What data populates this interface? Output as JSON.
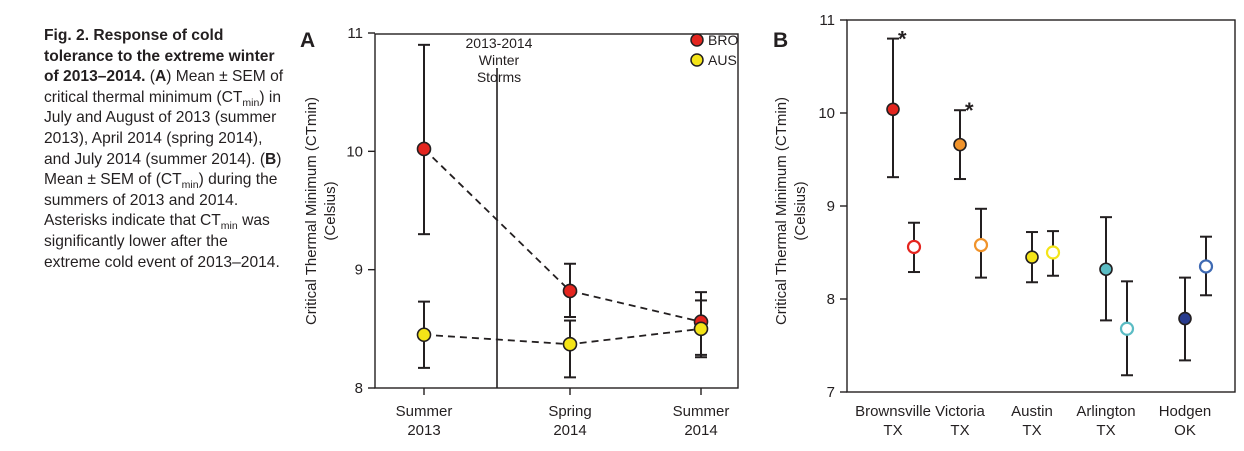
{
  "caption": {
    "title": "Fig. 2. Response of cold tolerance to the extreme winter of 2013–2014.",
    "label_a": "A",
    "body_1": "Mean ± SEM of critical thermal minimum (CT",
    "sub_1": "min",
    "body_2": ") in July and August of 2013 (summer 2013), April 2014 (spring 2014), and July 2014 (summer 2014).",
    "label_b": "B",
    "body_3": "Mean ± SEM of (CT",
    "sub_2": "min",
    "body_4": ") during the summers of 2013 and 2014. Asterisks indicate that CT",
    "sub_3": "min",
    "body_5": "was significantly lower after the extreme cold event of 2013–2014."
  },
  "chart_data": [
    {
      "panel": "A",
      "type": "scatter",
      "ylabel_line1": "Critical Thermal Minimum (CTmin)",
      "ylabel_line2": "(Celsius)",
      "ylim": [
        8,
        11
      ],
      "yticks": [
        "8",
        "9",
        "10",
        "11"
      ],
      "categories": [
        {
          "line1": "Summer",
          "line2": "2013"
        },
        {
          "line1": "Spring",
          "line2": "2014"
        },
        {
          "line1": "Summer",
          "line2": "2014"
        }
      ],
      "annotation": {
        "line1": "2013-2014",
        "line2": "Winter",
        "line3": "Storms"
      },
      "legend": [
        {
          "label": "BRO",
          "color": "#e4251f"
        },
        {
          "label": "AUS",
          "color": "#f4e418"
        }
      ],
      "series": [
        {
          "name": "BRO",
          "color": "#e4251f",
          "values": [
            10.02,
            8.82,
            8.56
          ],
          "sem_low": [
            9.3,
            8.6,
            8.26
          ],
          "sem_high": [
            10.9,
            9.05,
            8.81
          ]
        },
        {
          "name": "AUS",
          "color": "#f4e418",
          "values": [
            8.45,
            8.37,
            8.5
          ],
          "sem_low": [
            8.17,
            8.09,
            8.28
          ],
          "sem_high": [
            8.73,
            8.57,
            8.74
          ]
        }
      ]
    },
    {
      "panel": "B",
      "type": "scatter",
      "ylabel_line1": "Critical Thermal Minimum (CTmin)",
      "ylabel_line2": "(Celsius)",
      "ylim": [
        7,
        11
      ],
      "yticks": [
        "7",
        "8",
        "9",
        "10",
        "11"
      ],
      "categories": [
        {
          "line1": "Brownsville",
          "line2": "TX"
        },
        {
          "line1": "Victoria",
          "line2": "TX"
        },
        {
          "line1": "Austin",
          "line2": "TX"
        },
        {
          "line1": "Arlington",
          "line2": "TX"
        },
        {
          "line1": "Hodgen",
          "line2": "OK"
        }
      ],
      "asterisk": "*",
      "points": [
        {
          "site": "Brownsville",
          "season": "2013",
          "value": 10.04,
          "low": 9.31,
          "high": 10.8,
          "color": "#e4251f",
          "filled": true,
          "asterisk": true
        },
        {
          "site": "Brownsville",
          "season": "2014",
          "value": 8.56,
          "low": 8.29,
          "high": 8.82,
          "color": "#e4251f",
          "filled": false,
          "asterisk": false
        },
        {
          "site": "Victoria",
          "season": "2013",
          "value": 9.66,
          "low": 9.29,
          "high": 10.03,
          "color": "#f0932b",
          "filled": true,
          "asterisk": true
        },
        {
          "site": "Victoria",
          "season": "2014",
          "value": 8.58,
          "low": 8.23,
          "high": 8.97,
          "color": "#f0932b",
          "filled": false,
          "asterisk": false
        },
        {
          "site": "Austin",
          "season": "2013",
          "value": 8.45,
          "low": 8.18,
          "high": 8.72,
          "color": "#f4e418",
          "filled": true,
          "asterisk": false
        },
        {
          "site": "Austin",
          "season": "2014",
          "value": 8.5,
          "low": 8.25,
          "high": 8.73,
          "color": "#f4e418",
          "filled": false,
          "asterisk": false
        },
        {
          "site": "Arlington",
          "season": "2013",
          "value": 8.32,
          "low": 7.77,
          "high": 8.88,
          "color": "#5bbcc4",
          "filled": true,
          "asterisk": false
        },
        {
          "site": "Arlington",
          "season": "2014",
          "value": 7.68,
          "low": 7.18,
          "high": 8.19,
          "color": "#5bbcc4",
          "filled": false,
          "asterisk": false
        },
        {
          "site": "Hodgen",
          "season": "2013",
          "value": 7.79,
          "low": 7.34,
          "high": 8.23,
          "color": "#283b8e",
          "filled": true,
          "asterisk": false
        },
        {
          "site": "Hodgen",
          "season": "2014",
          "value": 8.35,
          "low": 8.04,
          "high": 8.67,
          "color": "#3f6ab3",
          "filled": false,
          "asterisk": false
        }
      ]
    }
  ]
}
